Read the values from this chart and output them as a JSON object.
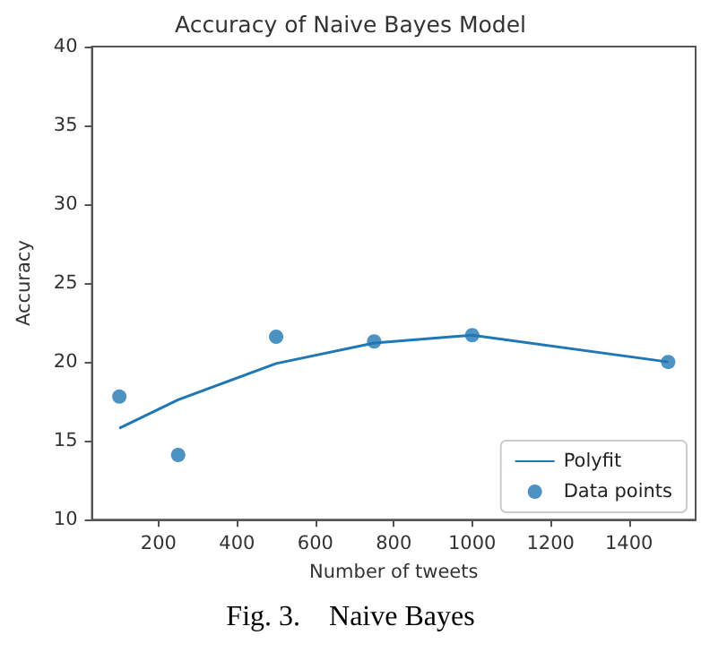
{
  "chart_data": {
    "type": "scatter",
    "title": "Accuracy of Naive Bayes Model",
    "xlabel": "Number of tweets",
    "ylabel": "Accuracy",
    "annotations": [
      "Fig. 3.    Naive Bayes"
    ],
    "xlim": [
      30,
      1570
    ],
    "xticks": [
      200,
      400,
      600,
      800,
      1000,
      1200,
      1400
    ],
    "ylim": [
      10,
      40
    ],
    "yticks": [
      10,
      15,
      20,
      25,
      30,
      35,
      40
    ],
    "grid": false,
    "legend": "bottom right",
    "series": [
      {
        "name": "Polyfit",
        "type": "line",
        "color": "#1f77b4",
        "x": [
          100,
          250,
          500,
          750,
          1000,
          1500
        ],
        "values": [
          15.8,
          17.6,
          19.9,
          21.2,
          21.7,
          20.0
        ]
      },
      {
        "name": "Data points",
        "marker": "circle",
        "color": "#1f77b4",
        "x": [
          100,
          250,
          500,
          750,
          1000,
          1500
        ],
        "values": [
          17.8,
          14.1,
          21.6,
          21.3,
          21.7,
          20.0
        ]
      }
    ]
  }
}
